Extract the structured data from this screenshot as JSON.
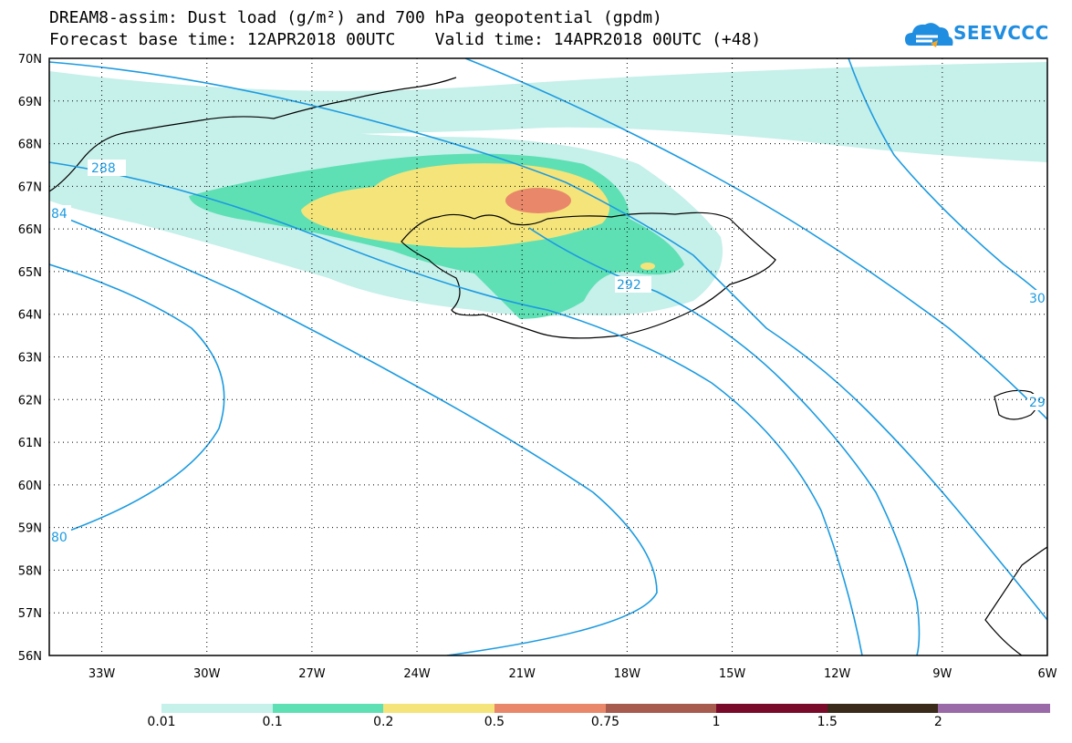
{
  "title_line1": "DREAM8-assim: Dust load (g/m²) and 700 hPa geopotential (gpdm)",
  "title_line2": "Forecast base time: 12APR2018 00UTC    Valid time: 14APR2018 00UTC (+48)",
  "logo": {
    "text": "SEEVCCC"
  },
  "chart_data": {
    "type": "map",
    "region": "Iceland and North Atlantic",
    "lon_range": [
      -34.5,
      -6
    ],
    "lat_range": [
      56,
      70
    ],
    "lat_ticks": [
      "70N",
      "69N",
      "68N",
      "67N",
      "66N",
      "65N",
      "64N",
      "63N",
      "62N",
      "61N",
      "60N",
      "59N",
      "58N",
      "57N",
      "56N"
    ],
    "lon_ticks": [
      "33W",
      "30W",
      "27W",
      "24W",
      "21W",
      "18W",
      "15W",
      "12W",
      "9W",
      "6W"
    ],
    "grid": true,
    "contour_labels": [
      "288",
      "84",
      "292",
      "80",
      "30",
      "29"
    ],
    "colorbar": {
      "colors": [
        "#c6f0ea",
        "#5ee0b4",
        "#f4e47a",
        "#e8876a",
        "#a75a4e",
        "#7a0a2a",
        "#3a2a1a",
        "#9a6aa8"
      ],
      "labels": [
        "0.01",
        "0.1",
        "0.2",
        "0.5",
        "0.75",
        "1",
        "1.5",
        "2"
      ]
    }
  }
}
